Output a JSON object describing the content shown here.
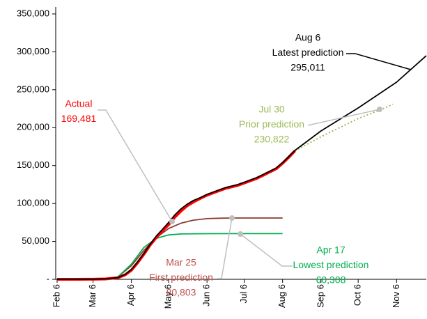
{
  "chart_data": {
    "type": "line",
    "xlim": [
      "Feb 6",
      "Nov 30"
    ],
    "xticks": [
      "Feb 6",
      "Mar 6",
      "Apr 6",
      "May 6",
      "Jun 6",
      "Jul 6",
      "Aug 6",
      "Sep 6",
      "Oct 6",
      "Nov 6"
    ],
    "ylim": [
      0,
      350000
    ],
    "yticks": [
      {
        "value": 0,
        "label": "-"
      },
      {
        "value": 50000,
        "label": "50,000"
      },
      {
        "value": 100000,
        "label": "100,000"
      },
      {
        "value": 150000,
        "label": "150,000"
      },
      {
        "value": 200000,
        "label": "200,000"
      },
      {
        "value": 250000,
        "label": "250,000"
      },
      {
        "value": 300000,
        "label": "300,000"
      },
      {
        "value": 350000,
        "label": "350,000"
      }
    ],
    "series": [
      {
        "name": "First prediction",
        "date": "Mar 25",
        "value": 80803,
        "value_label": "80,803",
        "color": "#8b3a2f",
        "x": [
          "Mar 16",
          "Mar 26",
          "Apr 6",
          "Apr 16",
          "Apr 26",
          "May 6",
          "May 16",
          "May 26",
          "Jun 6",
          "Jun 16",
          "Jun 26",
          "Aug 6"
        ],
        "values": [
          500,
          3000,
          18000,
          38000,
          55000,
          67000,
          74000,
          78000,
          80000,
          80600,
          80803,
          80803
        ]
      },
      {
        "name": "Lowest prediction",
        "date": "Apr 17",
        "value": 60308,
        "value_label": "60,308",
        "color": "#00b050",
        "x": [
          "Mar 16",
          "Mar 26",
          "Apr 6",
          "Apr 16",
          "Apr 26",
          "May 6",
          "May 16",
          "Jun 6",
          "Jul 1",
          "Aug 6"
        ],
        "values": [
          500,
          3000,
          20000,
          42000,
          54000,
          58500,
          59800,
          60200,
          60308,
          60308
        ]
      },
      {
        "name": "Prior prediction",
        "date": "Jul 30",
        "value": 230822,
        "value_label": "230,822",
        "color": "#9bbb59",
        "x": [
          "Aug 16",
          "Sep 6",
          "Oct 6",
          "Oct 26",
          "Nov 3"
        ],
        "values": [
          169481,
          188000,
          212000,
          225000,
          230822
        ]
      },
      {
        "name": "Actual",
        "value": 169481,
        "value_label": "169,481",
        "color": "#ff0000",
        "x": [
          "Feb 6",
          "Feb 21",
          "Mar 6",
          "Mar 16",
          "Mar 26",
          "Apr 1",
          "Apr 6",
          "Apr 11",
          "Apr 16",
          "Apr 21",
          "Apr 26",
          "May 1",
          "May 6",
          "May 11",
          "May 16",
          "May 21",
          "May 26",
          "Jun 1",
          "Jun 6",
          "Jun 11",
          "Jun 16",
          "Jun 21",
          "Jun 26",
          "Jul 1",
          "Jul 6",
          "Jul 11",
          "Jul 16",
          "Jul 21",
          "Jul 26",
          "Aug 1",
          "Aug 6",
          "Aug 11",
          "Aug 16"
        ],
        "values": [
          0,
          0,
          100,
          500,
          2000,
          6000,
          12000,
          22000,
          33000,
          45000,
          55000,
          64000,
          72000,
          82000,
          90000,
          97000,
          102000,
          107000,
          111000,
          114000,
          117000,
          120000,
          122000,
          124000,
          127000,
          130000,
          133000,
          137000,
          141000,
          146000,
          153000,
          161000,
          169481
        ]
      },
      {
        "name": "Latest prediction",
        "date": "Aug 6",
        "value": 295011,
        "value_label": "295,011",
        "color": "#000000",
        "x": [
          "Feb 6",
          "Feb 21",
          "Mar 6",
          "Mar 16",
          "Mar 26",
          "Apr 1",
          "Apr 6",
          "Apr 11",
          "Apr 16",
          "Apr 21",
          "Apr 26",
          "May 1",
          "May 6",
          "May 11",
          "May 16",
          "May 21",
          "May 26",
          "Jun 1",
          "Jun 6",
          "Jun 11",
          "Jun 16",
          "Jun 21",
          "Jun 26",
          "Jul 1",
          "Jul 6",
          "Jul 11",
          "Jul 16",
          "Jul 21",
          "Jul 26",
          "Aug 1",
          "Aug 6",
          "Aug 11",
          "Aug 16",
          "Sep 6",
          "Oct 6",
          "Nov 6",
          "Nov 30"
        ],
        "values": [
          0,
          0,
          100,
          600,
          2200,
          6500,
          13000,
          23000,
          34000,
          46000,
          57000,
          66000,
          75000,
          85000,
          93000,
          99000,
          104000,
          108000,
          112000,
          115000,
          118000,
          121000,
          123000,
          125000,
          128000,
          131000,
          134000,
          138000,
          142000,
          147000,
          154000,
          162000,
          170000,
          195700,
          226000,
          260000,
          295011
        ]
      }
    ]
  }
}
